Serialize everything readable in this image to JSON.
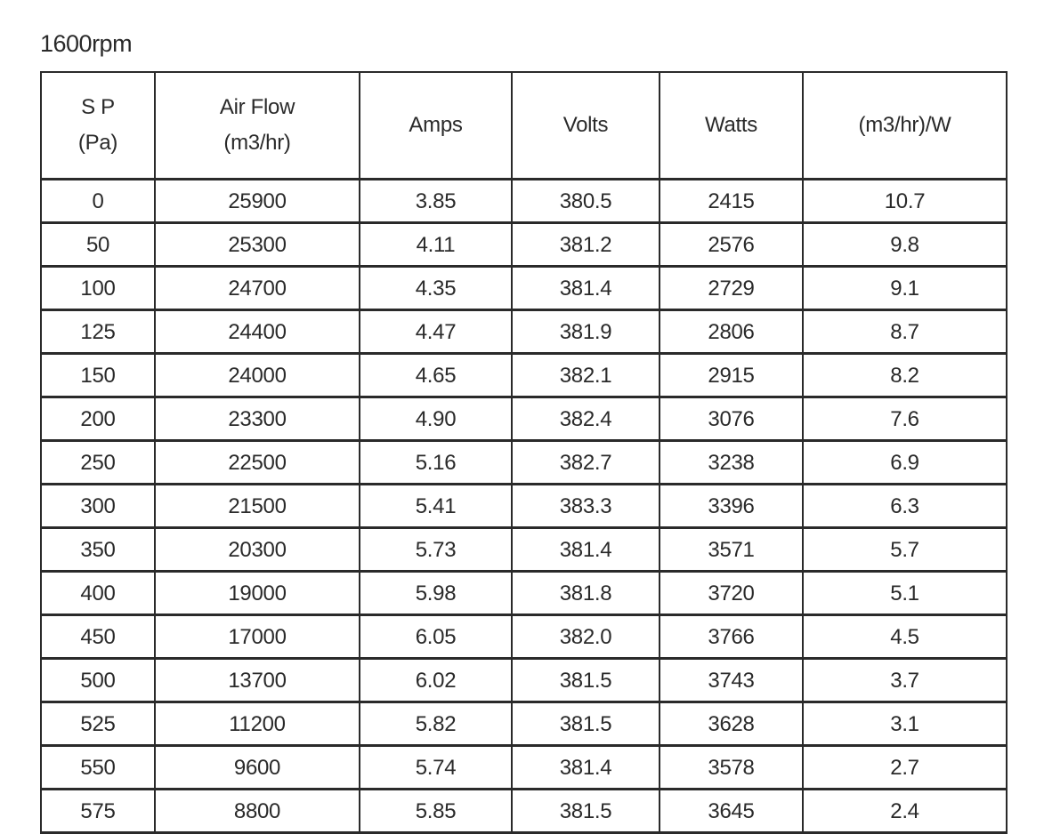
{
  "title": "1600rpm",
  "table": {
    "headers": [
      {
        "line1": "S P",
        "line2": "(Pa)"
      },
      {
        "line1": "Air Flow",
        "line2": "(m3/hr)"
      },
      {
        "line1": "Amps",
        "line2": ""
      },
      {
        "line1": "Volts",
        "line2": ""
      },
      {
        "line1": "Watts",
        "line2": ""
      },
      {
        "line1": "(m3/hr)/W",
        "line2": ""
      }
    ],
    "rows": [
      [
        "0",
        "25900",
        "3.85",
        "380.5",
        "2415",
        "10.7"
      ],
      [
        "50",
        "25300",
        "4.11",
        "381.2",
        "2576",
        "9.8"
      ],
      [
        "100",
        "24700",
        "4.35",
        "381.4",
        "2729",
        "9.1"
      ],
      [
        "125",
        "24400",
        "4.47",
        "381.9",
        "2806",
        "8.7"
      ],
      [
        "150",
        "24000",
        "4.65",
        "382.1",
        "2915",
        "8.2"
      ],
      [
        "200",
        "23300",
        "4.90",
        "382.4",
        "3076",
        "7.6"
      ],
      [
        "250",
        "22500",
        "5.16",
        "382.7",
        "3238",
        "6.9"
      ],
      [
        "300",
        "21500",
        "5.41",
        "383.3",
        "3396",
        "6.3"
      ],
      [
        "350",
        "20300",
        "5.73",
        "381.4",
        "3571",
        "5.7"
      ],
      [
        "400",
        "19000",
        "5.98",
        "381.8",
        "3720",
        "5.1"
      ],
      [
        "450",
        "17000",
        "6.05",
        "382.0",
        "3766",
        "4.5"
      ],
      [
        "500",
        "13700",
        "6.02",
        "381.5",
        "3743",
        "3.7"
      ],
      [
        "525",
        "11200",
        "5.82",
        "381.5",
        "3628",
        "3.1"
      ],
      [
        "550",
        "9600",
        "5.74",
        "381.4",
        "3578",
        "2.7"
      ],
      [
        "575",
        "8800",
        "5.85",
        "381.5",
        "3645",
        "2.4"
      ]
    ]
  }
}
